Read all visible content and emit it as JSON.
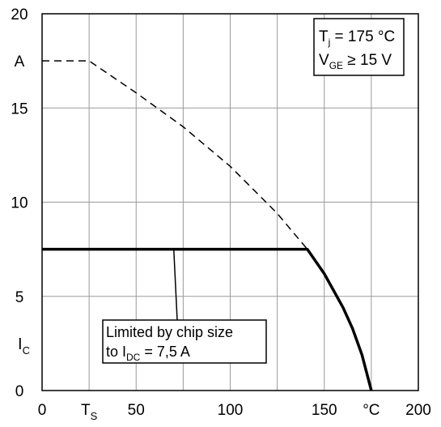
{
  "chart_data": {
    "type": "line",
    "xlim": [
      0,
      200
    ],
    "ylim": [
      0,
      20
    ],
    "grid": true,
    "x_ticks": [
      {
        "value": 0,
        "label": "0"
      },
      {
        "value": 25,
        "label": "T",
        "sub": "S"
      },
      {
        "value": 50,
        "label": "50"
      },
      {
        "value": 100,
        "label": "100"
      },
      {
        "value": 150,
        "label": "150"
      },
      {
        "value": 175,
        "label": "°C"
      },
      {
        "value": 200,
        "label": "200"
      }
    ],
    "x_grid": [
      0,
      25,
      50,
      75,
      100,
      125,
      150,
      175,
      200
    ],
    "y_ticks": [
      {
        "value": 0,
        "label": "0"
      },
      {
        "value": 5,
        "label": "5"
      },
      {
        "value": 10,
        "label": "10"
      },
      {
        "value": 15,
        "label": "15"
      },
      {
        "value": 20,
        "label": "20"
      }
    ],
    "y_unit": {
      "label": "A",
      "value": 17.5
    },
    "y_axis_label": {
      "main": "I",
      "sub": "C",
      "value": 2.5
    },
    "legend": {
      "line1": {
        "main": "T",
        "sub": "j",
        "rest": " = 175 °C"
      },
      "line2": {
        "main": "V",
        "sub": "GE",
        "rest": " ≥ 15 V"
      }
    },
    "annotation": {
      "line1": "Limited by chip size",
      "line2_pre": "to I",
      "line2_sub": "DC",
      "line2_post": " = 7,5 A",
      "points_to": [
        70,
        7.5
      ]
    },
    "series": [
      {
        "style": "dashed",
        "color": "#000000",
        "x": [
          0,
          25,
          50,
          75,
          100,
          125,
          141
        ],
        "y": [
          17.5,
          17.5,
          15.8,
          14.0,
          11.9,
          9.4,
          7.5
        ]
      },
      {
        "style": "solid-bold",
        "color": "#000000",
        "x": [
          0,
          141,
          150,
          160,
          165,
          170,
          175
        ],
        "y": [
          7.5,
          7.5,
          6.2,
          4.4,
          3.3,
          1.9,
          0
        ]
      }
    ]
  }
}
